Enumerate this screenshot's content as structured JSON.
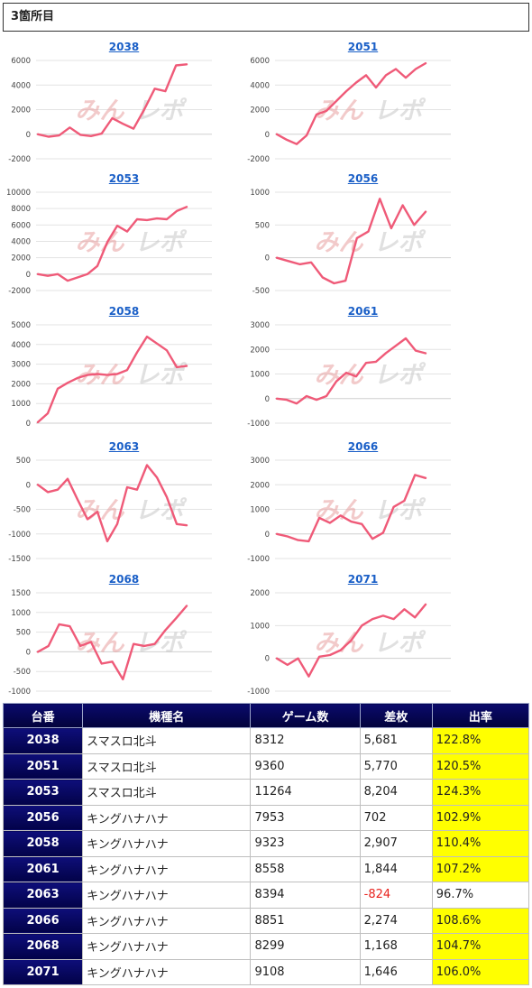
{
  "header": {
    "title": "3箇所目"
  },
  "chart_data": [
    {
      "type": "line",
      "title": "2038",
      "yticks": [
        -2000,
        0,
        2000,
        4000,
        6000
      ],
      "ylim": [
        -2000,
        6000
      ],
      "values": [
        0,
        -200,
        -100,
        550,
        -50,
        -150,
        50,
        1300,
        850,
        450,
        2000,
        3700,
        3500,
        5600,
        5681
      ]
    },
    {
      "type": "line",
      "title": "2051",
      "yticks": [
        -2000,
        0,
        2000,
        4000,
        6000
      ],
      "ylim": [
        -2000,
        6000
      ],
      "values": [
        0,
        -450,
        -800,
        -100,
        1600,
        1900,
        2700,
        3500,
        4200,
        4800,
        3800,
        4800,
        5300,
        4600,
        5300,
        5770
      ]
    },
    {
      "type": "line",
      "title": "2053",
      "yticks": [
        -2000,
        0,
        2000,
        4000,
        6000,
        8000,
        10000
      ],
      "ylim": [
        -2000,
        10000
      ],
      "values": [
        0,
        -200,
        0,
        -800,
        -400,
        0,
        1000,
        3900,
        5900,
        5200,
        6700,
        6600,
        6800,
        6700,
        7700,
        8204
      ]
    },
    {
      "type": "line",
      "title": "2056",
      "yticks": [
        -500,
        0,
        500,
        1000
      ],
      "ylim": [
        -500,
        1000
      ],
      "values": [
        0,
        -50,
        -100,
        -70,
        -300,
        -390,
        -350,
        300,
        400,
        900,
        450,
        800,
        500,
        702
      ]
    },
    {
      "type": "line",
      "title": "2058",
      "yticks": [
        0,
        1000,
        2000,
        3000,
        4000,
        5000
      ],
      "ylim": [
        0,
        5000
      ],
      "values": [
        50,
        500,
        1750,
        2050,
        2300,
        2450,
        2500,
        2450,
        2500,
        2700,
        3600,
        4400,
        4050,
        3700,
        2850,
        2907
      ]
    },
    {
      "type": "line",
      "title": "2061",
      "yticks": [
        -1000,
        0,
        1000,
        2000,
        3000
      ],
      "ylim": [
        -1000,
        3000
      ],
      "values": [
        0,
        -50,
        -200,
        100,
        -50,
        100,
        700,
        1050,
        900,
        1450,
        1500,
        1850,
        2150,
        2450,
        1950,
        1844
      ]
    },
    {
      "type": "line",
      "title": "2063",
      "yticks": [
        -1500,
        -1000,
        -500,
        0,
        500
      ],
      "ylim": [
        -1500,
        500
      ],
      "values": [
        0,
        -150,
        -100,
        120,
        -300,
        -700,
        -550,
        -1150,
        -800,
        -50,
        -100,
        400,
        150,
        -250,
        -800,
        -824
      ]
    },
    {
      "type": "line",
      "title": "2066",
      "yticks": [
        -1000,
        0,
        1000,
        2000,
        3000
      ],
      "ylim": [
        -1000,
        3000
      ],
      "values": [
        0,
        -100,
        -250,
        -300,
        650,
        450,
        750,
        500,
        400,
        -200,
        50,
        1100,
        1350,
        2400,
        2274
      ]
    },
    {
      "type": "line",
      "title": "2068",
      "yticks": [
        -1000,
        -500,
        0,
        500,
        1000,
        1500
      ],
      "ylim": [
        -1000,
        1500
      ],
      "values": [
        0,
        150,
        700,
        650,
        150,
        250,
        -300,
        -250,
        -700,
        200,
        150,
        200,
        550,
        850,
        1168
      ]
    },
    {
      "type": "line",
      "title": "2071",
      "yticks": [
        -1000,
        0,
        1000,
        2000
      ],
      "ylim": [
        -1000,
        2000
      ],
      "values": [
        0,
        -200,
        0,
        -550,
        50,
        100,
        250,
        550,
        1000,
        1200,
        1300,
        1200,
        1500,
        1250,
        1646
      ]
    }
  ],
  "table": {
    "headers": [
      "台番",
      "機種名",
      "ゲーム数",
      "差枚",
      "出率"
    ],
    "rows": [
      {
        "num": "2038",
        "name": "スマスロ北斗",
        "games": "8312",
        "diff": "5,681",
        "rate": "122.8%",
        "highlight": true,
        "negative": false
      },
      {
        "num": "2051",
        "name": "スマスロ北斗",
        "games": "9360",
        "diff": "5,770",
        "rate": "120.5%",
        "highlight": true,
        "negative": false
      },
      {
        "num": "2053",
        "name": "スマスロ北斗",
        "games": "11264",
        "diff": "8,204",
        "rate": "124.3%",
        "highlight": true,
        "negative": false
      },
      {
        "num": "2056",
        "name": "キングハナハナ",
        "games": "7953",
        "diff": "702",
        "rate": "102.9%",
        "highlight": true,
        "negative": false
      },
      {
        "num": "2058",
        "name": "キングハナハナ",
        "games": "9323",
        "diff": "2,907",
        "rate": "110.4%",
        "highlight": true,
        "negative": false
      },
      {
        "num": "2061",
        "name": "キングハナハナ",
        "games": "8558",
        "diff": "1,844",
        "rate": "107.2%",
        "highlight": true,
        "negative": false
      },
      {
        "num": "2063",
        "name": "キングハナハナ",
        "games": "8394",
        "diff": "-824",
        "rate": "96.7%",
        "highlight": false,
        "negative": true
      },
      {
        "num": "2066",
        "name": "キングハナハナ",
        "games": "8851",
        "diff": "2,274",
        "rate": "108.6%",
        "highlight": true,
        "negative": false
      },
      {
        "num": "2068",
        "name": "キングハナハナ",
        "games": "8299",
        "diff": "1,168",
        "rate": "104.7%",
        "highlight": true,
        "negative": false
      },
      {
        "num": "2071",
        "name": "キングハナハナ",
        "games": "9108",
        "diff": "1,646",
        "rate": "106.0%",
        "highlight": true,
        "negative": false
      }
    ]
  },
  "watermark": {
    "text_left": "みん",
    "text_right": "レポ",
    "color_left": "#e8a0a0",
    "color_right": "#c8c8c8"
  },
  "colors": {
    "line": "#ef5a78",
    "title_link": "#1a5fc7",
    "header_bg": "#02023b",
    "highlight": "#ffff00",
    "negative": "#e8231e"
  }
}
